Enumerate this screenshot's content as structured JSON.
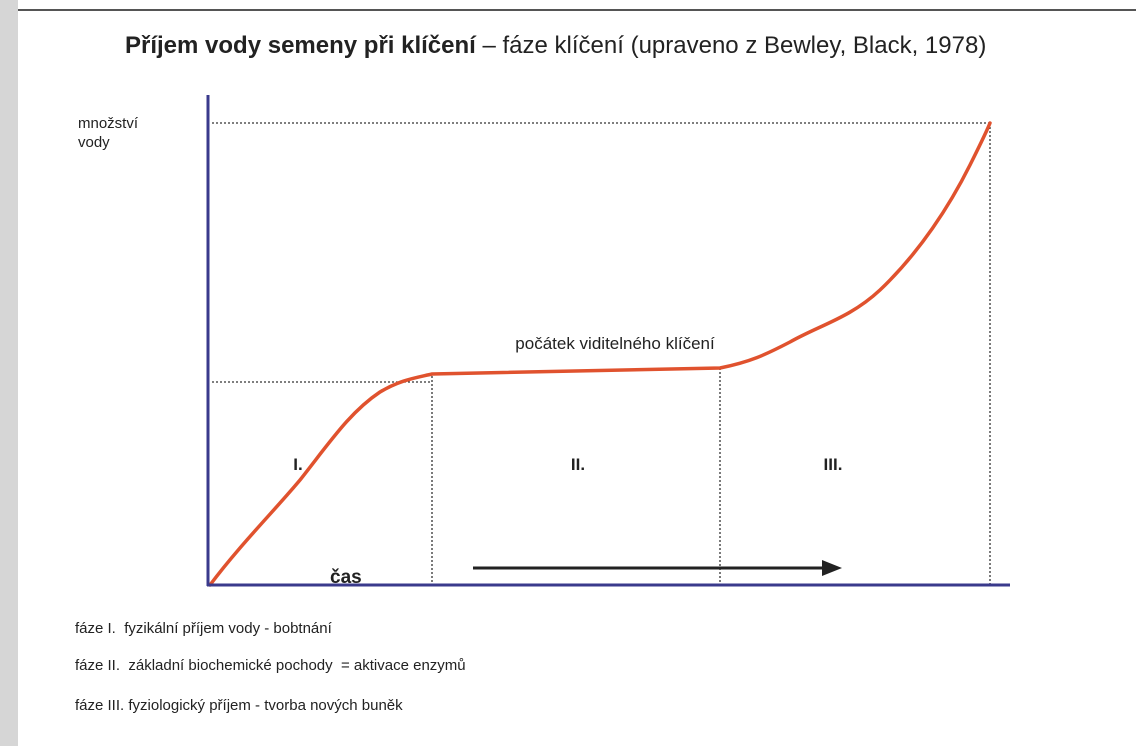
{
  "title": {
    "bold": "Příjem vody semeny při klíčení",
    "rest": " – fáze klíčení (upraveno z Bewley, Black, 1978)"
  },
  "y_label": [
    "množství",
    "vody"
  ],
  "annotation": "počátek viditelného klíčení",
  "phases": [
    "I.",
    "II.",
    "III."
  ],
  "x_label": "čas",
  "legend": [
    "fáze I.  fyzikální příjem vody - bobtnání",
    "fáze II.  základní biochemické pochody  = aktivace enzymů",
    "fáze III. fyziologický příjem - tvorba nových buněk"
  ]
}
